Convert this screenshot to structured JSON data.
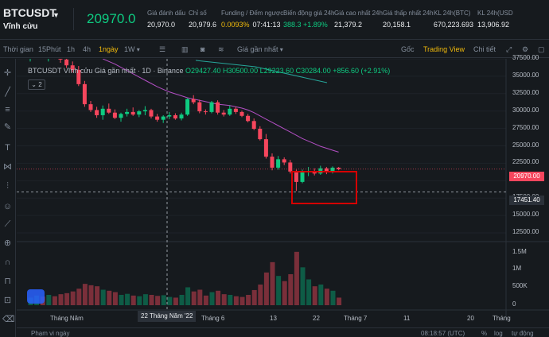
{
  "header": {
    "symbol": "BTCUSDT",
    "subtitle": "Vĩnh cửu",
    "last_price": "20970.0",
    "stats": [
      {
        "label": "Giá đánh dấu",
        "value": "20,970.0",
        "color": "#eaecef"
      },
      {
        "label": "Chỉ số",
        "value": "20,979.6",
        "color": "#eaecef"
      },
      {
        "label": "Funding / Đếm ngược",
        "value": "0.0093%",
        "value2": "07:41:13",
        "color": "#f0b90b"
      },
      {
        "label": "Biến động giá 24h",
        "value": "388.3 +1.89%",
        "color": "#0ecb81"
      },
      {
        "label": "Giá cao nhất 24h",
        "value": "21,379.2",
        "color": "#eaecef"
      },
      {
        "label": "Giá thấp nhất 24h",
        "value": "20,158.1",
        "color": "#eaecef"
      },
      {
        "label": "KL 24h(BTC)",
        "value": "670,223.693",
        "color": "#eaecef"
      },
      {
        "label": "KL 24h(USD",
        "value": "13,906.92",
        "color": "#eaecef"
      }
    ]
  },
  "toolbar": {
    "time_label": "Thời gian",
    "intervals": [
      "15Phút",
      "1h",
      "4h",
      "1ngày",
      "1W"
    ],
    "active_interval": "1ngày",
    "price_type": "Giá gần nhất",
    "right_tabs": [
      "Gốc",
      "Trading View",
      "Chi tiết"
    ],
    "active_tab": "Trading View"
  },
  "legend": {
    "title": "BTCUSDT Vĩnh cửu Giá gần nhất · 1D · Binance",
    "o": "O29427.40",
    "h": "H30500.00",
    "l": "L29223.60",
    "c": "C30284.00",
    "chg": "+856.60 (+2.91%)",
    "badge": "2"
  },
  "colors": {
    "up": "#0ecb81",
    "down": "#f6465d",
    "ma": "#b34fc4",
    "highlight": "#d50000"
  },
  "chart_data": {
    "type": "candlestick",
    "price_axis": [
      "37500.00",
      "35000.00",
      "32500.00",
      "30000.00",
      "27500.00",
      "25000.00",
      "22500.00",
      "20000.00",
      "17500.00",
      "15000.00",
      "12500.00"
    ],
    "volume_axis": [
      "1.5M",
      "1M",
      "500K",
      "0"
    ],
    "time_axis": [
      "Tháng Năm",
      "Tháng 6",
      "13",
      "22",
      "Tháng 7",
      "11",
      "20",
      "Tháng"
    ],
    "hover_date": "22 Tháng Năm '22",
    "last_price_label": "20970.00",
    "cursor_price_label": "17451.40",
    "ylim": [
      11500,
      38500
    ],
    "candles": [
      [
        38400,
        39200,
        37600,
        38800
      ],
      [
        38800,
        39500,
        38200,
        39000
      ],
      [
        39000,
        39600,
        38100,
        38300
      ],
      [
        38300,
        39100,
        37600,
        38700
      ],
      [
        38700,
        39400,
        38000,
        38200
      ],
      [
        38200,
        38900,
        37400,
        37900
      ],
      [
        37900,
        38400,
        36600,
        37000
      ],
      [
        37000,
        37600,
        35900,
        36300
      ],
      [
        36300,
        36900,
        33800,
        34100
      ],
      [
        34100,
        34600,
        30600,
        31000
      ],
      [
        31000,
        31500,
        29800,
        30100
      ],
      [
        30100,
        30600,
        28900,
        29300
      ],
      [
        29300,
        30800,
        28600,
        30300
      ],
      [
        30300,
        31100,
        29500,
        29700
      ],
      [
        29700,
        30200,
        28700,
        28900
      ],
      [
        28900,
        29700,
        28300,
        29500
      ],
      [
        29500,
        30300,
        29100,
        29800
      ],
      [
        29800,
        30500,
        29200,
        29400
      ],
      [
        29400,
        30100,
        29000,
        29900
      ],
      [
        29900,
        30700,
        29300,
        30100
      ],
      [
        30100,
        30300,
        28800,
        29100
      ],
      [
        29100,
        29500,
        28300,
        28600
      ],
      [
        28600,
        29300,
        28100,
        29100
      ],
      [
        29100,
        29800,
        28700,
        29300
      ],
      [
        29300,
        29600,
        28600,
        28800
      ],
      [
        28800,
        29700,
        28500,
        29400
      ],
      [
        29400,
        31900,
        29200,
        31800
      ],
      [
        31800,
        32400,
        31000,
        31300
      ],
      [
        31300,
        31700,
        29600,
        29900
      ],
      [
        29900,
        30200,
        29400,
        29800
      ],
      [
        29800,
        31500,
        29600,
        31300
      ],
      [
        31300,
        31600,
        29400,
        29700
      ],
      [
        29700,
        30100,
        29100,
        29400
      ],
      [
        29400,
        30800,
        29200,
        30300
      ],
      [
        30300,
        30600,
        29500,
        29800
      ],
      [
        29800,
        30000,
        29000,
        29200
      ],
      [
        29200,
        29500,
        28200,
        28400
      ],
      [
        28400,
        28800,
        27000,
        27200
      ],
      [
        27200,
        27600,
        25400,
        25600
      ],
      [
        25600,
        26400,
        22600,
        22900
      ],
      [
        22900,
        23400,
        20800,
        21200
      ],
      [
        21200,
        23000,
        20900,
        22500
      ],
      [
        22500,
        22800,
        21600,
        22000
      ],
      [
        22000,
        22400,
        20300,
        20600
      ],
      [
        20600,
        20900,
        17600,
        19000
      ],
      [
        19000,
        20900,
        18800,
        20500
      ],
      [
        20500,
        21300,
        19900,
        20700
      ],
      [
        20700,
        21100,
        20000,
        20300
      ],
      [
        20300,
        21500,
        20100,
        21100
      ],
      [
        21100,
        21300,
        20200,
        20500
      ],
      [
        20500,
        21400,
        20300,
        21200
      ],
      [
        21200,
        21300,
        20800,
        20970
      ]
    ],
    "ma": [
      null,
      null,
      null,
      null,
      null,
      null,
      null,
      null,
      null,
      null,
      null,
      null,
      38000,
      37600,
      37200,
      36700,
      36200,
      35700,
      35200,
      34700,
      34200,
      33700,
      33300,
      32900,
      32600,
      32300,
      32000,
      31800,
      31600,
      31400,
      31200,
      31000,
      30900,
      30800,
      30600,
      30400,
      30100,
      29700,
      29200,
      28700,
      28200,
      27700,
      27200,
      26700,
      26200,
      25700,
      25300,
      24900,
      24500,
      24200,
      23900,
      23600
    ],
    "volume": [
      0.22,
      0.28,
      0.25,
      0.3,
      0.26,
      0.32,
      0.35,
      0.4,
      0.48,
      0.62,
      0.58,
      0.55,
      0.45,
      0.42,
      0.38,
      0.3,
      0.33,
      0.28,
      0.26,
      0.32,
      0.3,
      0.27,
      0.29,
      0.24,
      0.22,
      0.3,
      0.52,
      0.4,
      0.45,
      0.28,
      0.38,
      0.42,
      0.32,
      0.3,
      0.26,
      0.24,
      0.3,
      0.44,
      0.6,
      0.95,
      1.25,
      0.85,
      0.7,
      0.9,
      1.55,
      1.1,
      0.75,
      0.55,
      0.6,
      0.48,
      0.42,
      0.22
    ],
    "vol_ylim": [
      0,
      1.8
    ]
  },
  "bottom": {
    "range": "Phạm vi ngày",
    "time": "08:18:57 (UTC)",
    "pct": "%",
    "log": "log",
    "auto": "tự động"
  }
}
